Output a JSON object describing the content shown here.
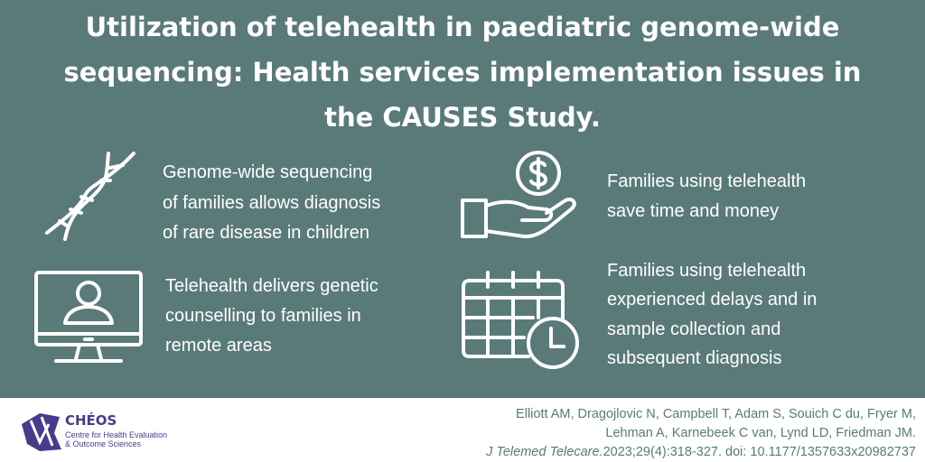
{
  "title": {
    "lines": [
      "Utilization of telehealth in paediatric genome-wide",
      "sequencing: Health services implementation issues in",
      "the CAUSES Study."
    ]
  },
  "items": [
    {
      "lines": [
        "Genome-wide sequencing",
        "of families allows diagnosis",
        "of rare disease in children"
      ]
    },
    {
      "lines": [
        "Families using telehealth",
        "save time and money"
      ]
    },
    {
      "lines": [
        "Telehealth delivers genetic",
        "counselling to families in",
        "remote areas"
      ]
    },
    {
      "lines": [
        "Families using telehealth",
        "experienced delays and in",
        "sample collection and",
        "subsequent diagnosis"
      ]
    }
  ],
  "footer": {
    "logo": {
      "name": "CHÉOS",
      "lines": [
        "Centre for Health Evaluation",
        "& Outcome Sciences"
      ]
    },
    "citation": {
      "lines": [
        "Elliott AM, Dragojlovic N, Campbell T, Adam S, Souich C du, Fryer M,",
        "Lehman A, Karnebeek C van, Lynd LD, Friedman JM."
      ],
      "journal": "J Telemed Telecare.",
      "details": "2023;29(4):318-327.  doi: 10.1177/1357633x20982737"
    }
  }
}
